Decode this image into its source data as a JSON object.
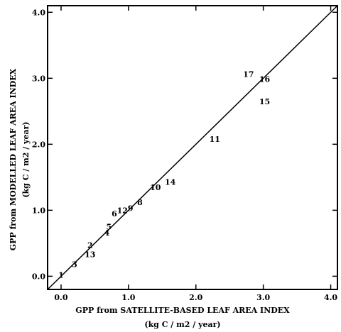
{
  "chart_data": {
    "type": "scatter",
    "xlabel": "GPP from SATELLITE-BASED LEAF AREA INDEX",
    "xlabel_units": "(kg C / m2 / year)",
    "ylabel": "GPP from MODELLED LEAF AREA INDEX",
    "ylabel_units": "(kg C / m2 / year)",
    "xlim": [
      -0.2,
      4.1
    ],
    "ylim": [
      -0.2,
      4.1
    ],
    "x_ticks": [
      "0.0",
      "1.0",
      "2.0",
      "3.0",
      "4.0"
    ],
    "y_ticks": [
      "0.0",
      "1.0",
      "2.0",
      "3.0",
      "4.0"
    ],
    "grid": false,
    "reference_line": "1:1",
    "points": [
      {
        "label": "1",
        "x": 0.0,
        "y": 0.02
      },
      {
        "label": "2",
        "x": 0.43,
        "y": 0.47
      },
      {
        "label": "3",
        "x": 0.2,
        "y": 0.18
      },
      {
        "label": "4",
        "x": 0.68,
        "y": 0.66
      },
      {
        "label": "5",
        "x": 0.71,
        "y": 0.75
      },
      {
        "label": "6",
        "x": 0.79,
        "y": 0.95
      },
      {
        "label": "8",
        "x": 1.17,
        "y": 1.12
      },
      {
        "label": "9",
        "x": 1.03,
        "y": 1.03
      },
      {
        "label": "10",
        "x": 1.4,
        "y": 1.35
      },
      {
        "label": "11",
        "x": 2.28,
        "y": 2.08
      },
      {
        "label": "12",
        "x": 0.91,
        "y": 1.0
      },
      {
        "label": "13",
        "x": 0.43,
        "y": 0.33
      },
      {
        "label": "14",
        "x": 1.62,
        "y": 1.43
      },
      {
        "label": "15",
        "x": 3.02,
        "y": 2.65
      },
      {
        "label": "16",
        "x": 3.02,
        "y": 2.99
      },
      {
        "label": "17",
        "x": 2.78,
        "y": 3.06
      }
    ]
  }
}
